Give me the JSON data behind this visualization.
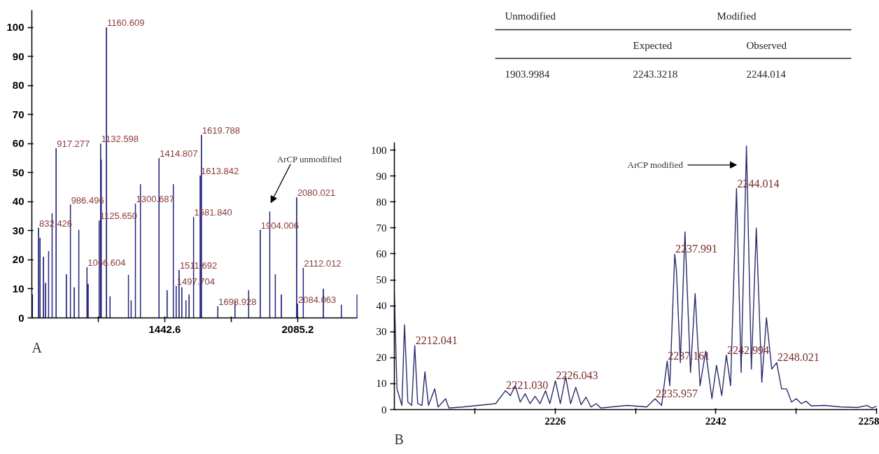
{
  "chart_data": [
    {
      "type": "bar",
      "xlim": [
        800,
        2373
      ],
      "ylim": [
        0,
        106
      ],
      "xticks": [
        {
          "value": 1121.3,
          "label": null
        },
        1442.6,
        {
          "value": 1763.9,
          "label": null
        },
        2085.2
      ],
      "yticks": [
        0,
        10,
        20,
        30,
        40,
        50,
        60,
        70,
        80,
        90,
        100
      ],
      "series": [
        {
          "color": "#1f1f7a",
          "x": [
            803,
            832.4,
            839.5,
            856,
            866,
            881,
            898,
            917.3,
            967,
            986.5,
            1005,
            1027,
            1066.6,
            1072,
            1125.7,
            1132.6,
            1135.5,
            1160.6,
            1178,
            1267,
            1280,
            1300.7,
            1325,
            1414.8,
            1454,
            1484,
            1497.7,
            1511.7,
            1525,
            1545,
            1560,
            1581.8,
            1613.8,
            1619.8,
            1698.9,
            1782,
            1848,
            1904,
            1950,
            1977,
            2006,
            2080,
            2084.1,
            2112,
            2209,
            2296,
            2372
          ],
          "values": [
            8,
            31,
            27.5,
            21,
            12,
            23,
            36,
            58.4,
            15,
            39,
            10.5,
            30.3,
            17.4,
            11.7,
            33.5,
            60,
            54.5,
            100,
            7.4,
            14.8,
            6,
            39.3,
            46,
            55,
            9.5,
            46,
            11,
            16.5,
            10.5,
            6,
            8,
            34.7,
            49,
            63,
            4,
            5.8,
            9.5,
            30.3,
            36.6,
            15,
            8,
            41.5,
            4.8,
            17.2,
            10,
            4.5,
            8
          ]
        }
      ],
      "annotations": [
        {
          "text": "832.426",
          "x": 832.4,
          "y": 31
        },
        {
          "text": "917.277",
          "x": 917.3,
          "y": 58.4
        },
        {
          "text": "986.496",
          "x": 986.5,
          "y": 39
        },
        {
          "text": "1066.604",
          "x": 1066.6,
          "y": 17.4
        },
        {
          "text": "1125.650",
          "x": 1125.7,
          "y": 33.5
        },
        {
          "text": "1132.598",
          "x": 1132.6,
          "y": 60
        },
        {
          "text": "1160.609",
          "x": 1160.6,
          "y": 100
        },
        {
          "text": "1300.687",
          "x": 1300.7,
          "y": 39.3
        },
        {
          "text": "1414.807",
          "x": 1414.8,
          "y": 55
        },
        {
          "text": "1497.704",
          "x": 1497.7,
          "y": 11
        },
        {
          "text": "1511.692",
          "x": 1511.7,
          "y": 16.5
        },
        {
          "text": "1581.840",
          "x": 1581.8,
          "y": 34.7
        },
        {
          "text": "1613.842",
          "x": 1613.8,
          "y": 49
        },
        {
          "text": "1619.788",
          "x": 1619.8,
          "y": 63
        },
        {
          "text": "1698.928",
          "x": 1698.9,
          "y": 4
        },
        {
          "text": "1904.006",
          "x": 1904,
          "y": 30.3
        },
        {
          "text": "2080.021",
          "x": 2080,
          "y": 41.5
        },
        {
          "text": "2084.063",
          "x": 2084.1,
          "y": 4.8
        },
        {
          "text": "2112.012",
          "x": 2112,
          "y": 17.2
        },
        "ArCP unmodified",
        "A"
      ]
    },
    {
      "type": "other",
      "annotations": [
        "Unmodified",
        "Modified",
        "Expected",
        "Observed",
        "1903.9984",
        "2243.3218",
        "2244.014"
      ]
    },
    {
      "type": "line",
      "xlim": [
        2210,
        2258
      ],
      "ylim": [
        0,
        103
      ],
      "xticks": [
        {
          "value": 2218,
          "label": null
        },
        2226,
        {
          "value": 2234,
          "label": null
        },
        2242,
        {
          "value": 2250,
          "label": null
        },
        2258
      ],
      "yticks": [
        0,
        10,
        20,
        30,
        40,
        50,
        60,
        70,
        80,
        90,
        100
      ],
      "series": [
        {
          "color": "#2b2b6e",
          "x": [
            2210.0,
            2210.26,
            2210.75,
            2211.01,
            2211.34,
            2211.73,
            2212.03,
            2212.32,
            2212.75,
            2213.04,
            2213.4,
            2214.02,
            2214.35,
            2215.1,
            2215.43,
            2216.81,
            2220.08,
            2221.06,
            2221.55,
            2222.04,
            2222.53,
            2223.02,
            2223.51,
            2224.01,
            2224.5,
            2225.05,
            2225.48,
            2226.03,
            2226.52,
            2227.05,
            2227.54,
            2228.06,
            2228.59,
            2229.08,
            2229.57,
            2230.09,
            2230.55,
            2233.17,
            2235.13,
            2235.95,
            2236.6,
            2237.16,
            2237.42,
            2237.91,
            2238.08,
            2238.47,
            2238.93,
            2239.48,
            2239.94,
            2240.43,
            2240.99,
            2241.61,
            2242.07,
            2242.59,
            2243.05,
            2243.47,
            2244.06,
            2244.52,
            2245.05,
            2245.54,
            2246.03,
            2246.58,
            2247.04,
            2247.57,
            2248.06,
            2248.55,
            2249.04,
            2249.53,
            2250.02,
            2250.51,
            2251.0,
            2251.49,
            2252.8,
            2254.44,
            2256.07,
            2257.06,
            2257.55,
            2258.0
          ],
          "values": [
            44.7,
            8,
            1.6,
            32.7,
            2.9,
            1.6,
            24.7,
            2.3,
            1.6,
            14.6,
            1.6,
            8.0,
            1.0,
            4.2,
            0.6,
            1.0,
            2.3,
            7.3,
            5.4,
            9.2,
            2.9,
            6.1,
            2.3,
            5.1,
            2.3,
            7.3,
            2.3,
            11.1,
            2.3,
            12.7,
            2.3,
            8.6,
            1.9,
            4.8,
            1.0,
            2.3,
            0.6,
            1.6,
            1.0,
            4.2,
            1.6,
            18.7,
            9.2,
            59.9,
            53.5,
            18.1,
            68.5,
            14.3,
            44.7,
            9.2,
            22.5,
            4.2,
            17.1,
            5.4,
            21.0,
            9.2,
            85.2,
            14.3,
            101.6,
            15.6,
            70.0,
            10.5,
            35.4,
            15.6,
            18.1,
            8.0,
            8.0,
            2.9,
            4.2,
            2.3,
            3.2,
            1.4,
            1.6,
            1.0,
            0.8,
            1.6,
            0.6,
            1.3
          ]
        }
      ],
      "annotations": [
        {
          "text": "2212.041",
          "x": 2212.03,
          "y": 24.7
        },
        {
          "text": "2221.030",
          "x": 2221.06,
          "y": 7.3
        },
        {
          "text": "2226.043",
          "x": 2226.03,
          "y": 11.1
        },
        {
          "text": "2235.957",
          "x": 2235.95,
          "y": 4.2
        },
        {
          "text": "2237.161",
          "x": 2237.16,
          "y": 18.7
        },
        {
          "text": "2237.991",
          "x": 2237.91,
          "y": 59.9
        },
        {
          "text": "2242.994",
          "x": 2243.05,
          "y": 21.0
        },
        {
          "text": "2244.014",
          "x": 2244.06,
          "y": 85.2
        },
        {
          "text": "2248.021",
          "x": 2248.06,
          "y": 18.1
        },
        "ArCP modified",
        "B"
      ]
    }
  ]
}
